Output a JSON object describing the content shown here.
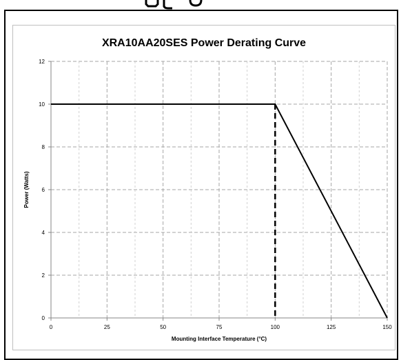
{
  "chart_data": {
    "type": "line",
    "title": "XRA10AA20SES Power Derating Curve",
    "xlabel": "Mounting Interface Temperature (°C)",
    "ylabel": "Power (Watts)",
    "xlim": [
      0,
      150
    ],
    "ylim": [
      0,
      12
    ],
    "x_ticks": [
      0,
      25,
      50,
      75,
      100,
      125,
      150
    ],
    "y_ticks": [
      0,
      2,
      4,
      6,
      8,
      10,
      12
    ],
    "x_tick_labels": [
      "0",
      "25",
      "50",
      "75",
      "100",
      "125",
      "150"
    ],
    "y_tick_labels": [
      "0",
      "2",
      "4",
      "6",
      "8",
      "10",
      "12"
    ],
    "grid": true,
    "series": [
      {
        "style": "solid",
        "color": "#000000",
        "points": [
          [
            0,
            10
          ],
          [
            100,
            10
          ],
          [
            150,
            0
          ]
        ]
      },
      {
        "style": "dashed",
        "color": "#000000",
        "points": [
          [
            100,
            10
          ],
          [
            100,
            0
          ]
        ]
      }
    ]
  },
  "colors": {
    "grid": "#a6a6a6",
    "axis": "#868686",
    "line": "#000000",
    "text": "#000000"
  }
}
